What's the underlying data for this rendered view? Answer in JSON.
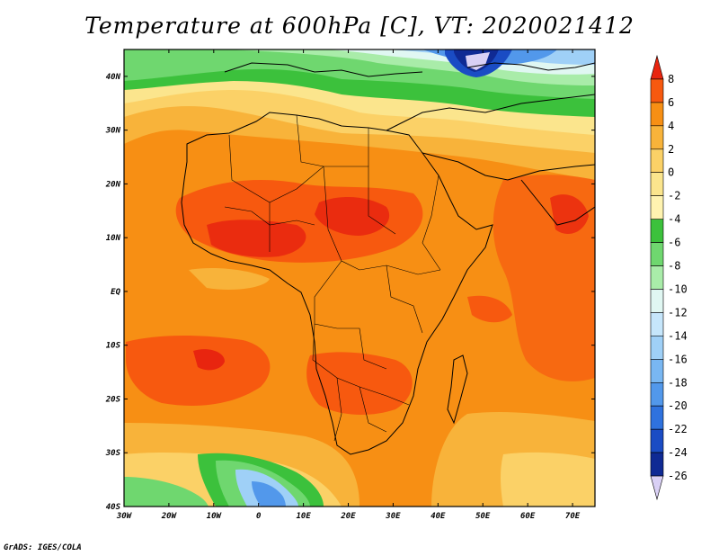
{
  "title": "Temperature at 600hPa [C], VT: 2020021412",
  "credit": "GrADS: IGES/COLA",
  "map": {
    "lon_range": [
      -30,
      75
    ],
    "lat_range": [
      -40,
      45
    ],
    "lon_ticks": [
      "30W",
      "20W",
      "10W",
      "0",
      "10E",
      "20E",
      "30E",
      "40E",
      "50E",
      "60E",
      "70E"
    ],
    "lat_ticks": [
      "40N",
      "30N",
      "20N",
      "10N",
      "EQ",
      "10S",
      "20S",
      "30S",
      "40S"
    ]
  },
  "colorbar": {
    "labels": [
      "8",
      "6",
      "4",
      "2",
      "0",
      "-2",
      "-4",
      "-6",
      "-8",
      "-10",
      "-12",
      "-14",
      "-16",
      "-18",
      "-20",
      "-22",
      "-24",
      "-26"
    ],
    "colors": [
      "#e8250f",
      "#f7590f",
      "#f78f14",
      "#f8b33a",
      "#fbd167",
      "#fbe58d",
      "#fff3b0",
      "#3cc13c",
      "#6fd76f",
      "#a9eca9",
      "#e0f7f2",
      "#c6e6fb",
      "#9fd0f7",
      "#79b7f2",
      "#5298eb",
      "#2f72de",
      "#1a4cc4",
      "#0f2a94",
      "#d9d0f5"
    ]
  },
  "colors": {
    "ocean_background": "#f78f14",
    "warm": "#f7590f",
    "hot": "#e8250f",
    "cool_green": "#6fd76f",
    "cold_blue": "#5298eb",
    "very_cold": "#0f2a94"
  }
}
